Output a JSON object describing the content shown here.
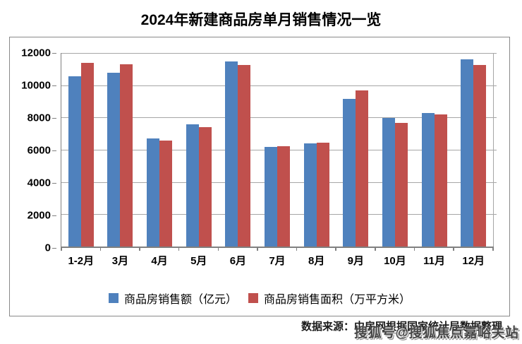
{
  "page": {
    "title": "2024年新建商品房单月销售情况一览"
  },
  "chart_data": {
    "type": "bar",
    "title": "2024年新建商品房单月销售情况一览",
    "categories": [
      "1-2月",
      "3月",
      "4月",
      "5月",
      "6月",
      "7月",
      "8月",
      "9月",
      "10月",
      "11月",
      "12月"
    ],
    "series": [
      {
        "name": "商品房销售额（亿元）",
        "color": "#4F81BD",
        "values": [
          10566,
          10789,
          6712,
          7598,
          11468,
          6197,
          6393,
          9157,
          7975,
          8270,
          11625
        ]
      },
      {
        "name": "商品房销售面积（万平方米）",
        "color": "#C0504D",
        "values": [
          11369,
          11299,
          6584,
          7390,
          11274,
          6233,
          6453,
          9682,
          7646,
          8188,
          11267
        ]
      }
    ],
    "xlabel": "",
    "ylabel": "",
    "ylim": [
      0,
      12000
    ],
    "ytick_step": 2000,
    "grid": true,
    "legend_position": "bottom"
  },
  "footer": {
    "source_text": "数据来源：中房网根据国家统计局数据整理"
  },
  "watermark": {
    "text": "搜狐号@搜狐焦点嘉峪关站"
  },
  "colors": {
    "series_sales_value": "#4F81BD",
    "series_sales_area": "#C0504D",
    "gridline": "#A6A6A6",
    "axis": "#808080",
    "frame_border": "#898989",
    "text": "#000000"
  }
}
